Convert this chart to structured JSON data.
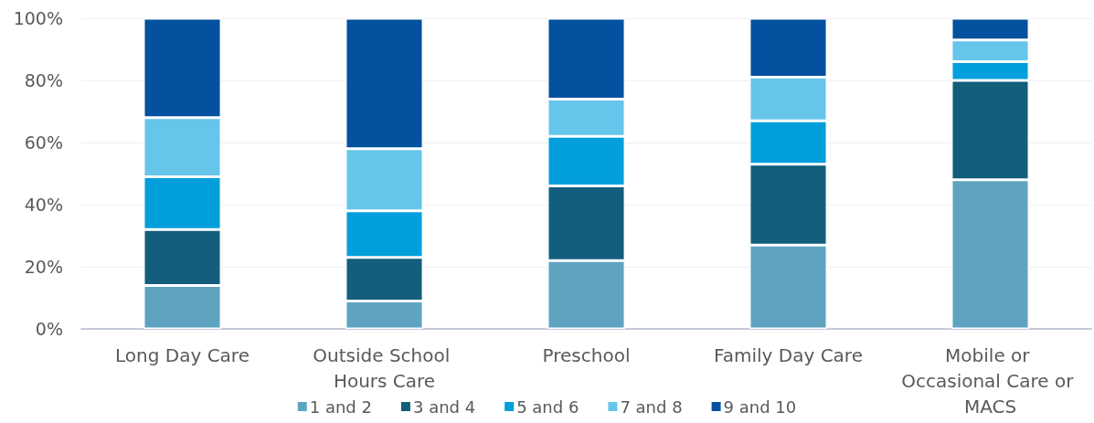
{
  "chart_data": {
    "type": "bar",
    "stacked": true,
    "categories": [
      "Long Day Care",
      "Outside School Hours Care",
      "Preschool",
      "Family Day Care",
      "Mobile or Occasional Care or MACS"
    ],
    "series": [
      {
        "name": "1 and 2",
        "color": "#5ea4c1",
        "values": [
          14,
          9,
          22,
          27,
          48
        ]
      },
      {
        "name": "3 and 4",
        "color": "#125e7c",
        "values": [
          18,
          14,
          24,
          26,
          32
        ]
      },
      {
        "name": "5 and 6",
        "color": "#019fdb",
        "values": [
          17,
          15,
          16,
          14,
          6
        ]
      },
      {
        "name": "7 and 8",
        "color": "#66c5ea",
        "values": [
          19,
          20,
          12,
          14,
          7
        ]
      },
      {
        "name": "9 and 10",
        "color": "#03519f",
        "values": [
          32,
          42,
          26,
          19,
          7
        ]
      }
    ],
    "ylim": [
      0,
      100
    ],
    "yticks": [
      {
        "value": 0,
        "label": "0%"
      },
      {
        "value": 20,
        "label": "20%"
      },
      {
        "value": 40,
        "label": "40%"
      },
      {
        "value": 60,
        "label": "60%"
      },
      {
        "value": 80,
        "label": "80%"
      },
      {
        "value": 100,
        "label": "100%"
      }
    ],
    "grid": "y",
    "legend": "bottom"
  }
}
